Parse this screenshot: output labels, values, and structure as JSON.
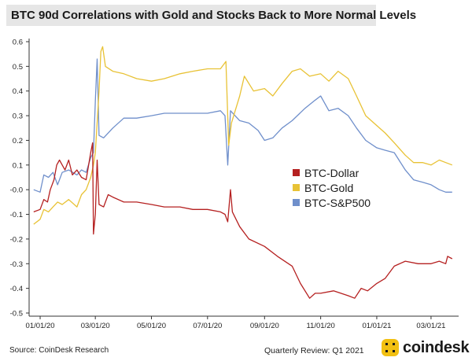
{
  "header": {
    "title": "BTC 90d Correlations with Gold and Stocks Back to More Normal Levels"
  },
  "footer": {
    "source": "Source: CoinDesk Research",
    "review": "Quarterly Review: Q1 2021",
    "brand": "coindesk"
  },
  "colors": {
    "dollar": "#b52020",
    "gold": "#e8c235",
    "sp500": "#6f8fcb",
    "brand": "#f2c012"
  },
  "chart_data": {
    "type": "line",
    "title": "BTC 90d Correlations with Gold and Stocks Back to More Normal Levels",
    "xlabel": "",
    "ylabel": "",
    "xlim": [
      "2019-12-20",
      "2021-03-31"
    ],
    "ylim": [
      -0.5,
      0.6
    ],
    "x_ticks": [
      "2020-01-01",
      "2020-03-01",
      "2020-05-01",
      "2020-07-01",
      "2020-09-01",
      "2020-11-01",
      "2021-01-01",
      "2021-03-01"
    ],
    "x_tick_labels": [
      "01/01/20",
      "03/01/20",
      "05/01/20",
      "07/01/20",
      "09/01/20",
      "11/01/20",
      "01/01/21",
      "03/01/21"
    ],
    "y_ticks": [
      0.6,
      0.5,
      0.4,
      0.3,
      0.2,
      0.1,
      0.0,
      -0.1,
      -0.2,
      -0.3,
      -0.4,
      -0.5
    ],
    "y_tick_labels": [
      "0.6",
      "0.5",
      "0.4",
      "0.3",
      "0.2",
      "0.1",
      "-0.0",
      "-0.1",
      "-0.2",
      "-0.3",
      "-0.4",
      "-0.5"
    ],
    "grid": "none",
    "legend_position": "right",
    "series": [
      {
        "name": "BTC-Dollar",
        "color": "#b52020",
        "points": [
          [
            "2019-12-25",
            -0.09
          ],
          [
            "2020-01-01",
            -0.08
          ],
          [
            "2020-01-05",
            -0.04
          ],
          [
            "2020-01-09",
            -0.05
          ],
          [
            "2020-01-12",
            0.0
          ],
          [
            "2020-01-16",
            0.04
          ],
          [
            "2020-01-19",
            0.1
          ],
          [
            "2020-01-22",
            0.12
          ],
          [
            "2020-01-25",
            0.1
          ],
          [
            "2020-01-28",
            0.08
          ],
          [
            "2020-02-01",
            0.12
          ],
          [
            "2020-02-05",
            0.06
          ],
          [
            "2020-02-10",
            0.08
          ],
          [
            "2020-02-15",
            0.05
          ],
          [
            "2020-02-20",
            0.04
          ],
          [
            "2020-02-25",
            0.15
          ],
          [
            "2020-02-27",
            0.19
          ],
          [
            "2020-02-28",
            -0.18
          ],
          [
            "2020-03-01",
            -0.1
          ],
          [
            "2020-03-03",
            0.12
          ],
          [
            "2020-03-05",
            -0.06
          ],
          [
            "2020-03-10",
            -0.07
          ],
          [
            "2020-03-15",
            -0.02
          ],
          [
            "2020-03-20",
            -0.03
          ],
          [
            "2020-04-01",
            -0.05
          ],
          [
            "2020-04-15",
            -0.05
          ],
          [
            "2020-05-01",
            -0.06
          ],
          [
            "2020-05-15",
            -0.07
          ],
          [
            "2020-06-01",
            -0.07
          ],
          [
            "2020-06-15",
            -0.08
          ],
          [
            "2020-07-01",
            -0.08
          ],
          [
            "2020-07-15",
            -0.09
          ],
          [
            "2020-07-20",
            -0.1
          ],
          [
            "2020-07-23",
            -0.13
          ],
          [
            "2020-07-26",
            0.0
          ],
          [
            "2020-07-28",
            -0.09
          ],
          [
            "2020-08-05",
            -0.15
          ],
          [
            "2020-08-15",
            -0.2
          ],
          [
            "2020-09-01",
            -0.23
          ],
          [
            "2020-09-15",
            -0.27
          ],
          [
            "2020-10-01",
            -0.31
          ],
          [
            "2020-10-10",
            -0.38
          ],
          [
            "2020-10-20",
            -0.44
          ],
          [
            "2020-10-26",
            -0.42
          ],
          [
            "2020-11-01",
            -0.42
          ],
          [
            "2020-11-15",
            -0.41
          ],
          [
            "2020-12-01",
            -0.43
          ],
          [
            "2020-12-08",
            -0.44
          ],
          [
            "2020-12-15",
            -0.4
          ],
          [
            "2020-12-22",
            -0.41
          ],
          [
            "2021-01-01",
            -0.38
          ],
          [
            "2021-01-10",
            -0.36
          ],
          [
            "2021-01-20",
            -0.31
          ],
          [
            "2021-02-01",
            -0.29
          ],
          [
            "2021-02-15",
            -0.3
          ],
          [
            "2021-03-01",
            -0.3
          ],
          [
            "2021-03-10",
            -0.29
          ],
          [
            "2021-03-17",
            -0.3
          ],
          [
            "2021-03-19",
            -0.27
          ],
          [
            "2021-03-24",
            -0.28
          ]
        ]
      },
      {
        "name": "BTC-Gold",
        "color": "#e8c235",
        "points": [
          [
            "2019-12-25",
            -0.14
          ],
          [
            "2020-01-01",
            -0.12
          ],
          [
            "2020-01-05",
            -0.08
          ],
          [
            "2020-01-10",
            -0.09
          ],
          [
            "2020-01-15",
            -0.07
          ],
          [
            "2020-01-20",
            -0.05
          ],
          [
            "2020-01-25",
            -0.06
          ],
          [
            "2020-02-01",
            -0.04
          ],
          [
            "2020-02-10",
            -0.07
          ],
          [
            "2020-02-15",
            -0.02
          ],
          [
            "2020-02-20",
            0.0
          ],
          [
            "2020-02-25",
            0.05
          ],
          [
            "2020-02-28",
            0.1
          ],
          [
            "2020-03-01",
            0.15
          ],
          [
            "2020-03-05",
            0.4
          ],
          [
            "2020-03-07",
            0.56
          ],
          [
            "2020-03-09",
            0.58
          ],
          [
            "2020-03-12",
            0.5
          ],
          [
            "2020-03-20",
            0.48
          ],
          [
            "2020-04-01",
            0.47
          ],
          [
            "2020-04-15",
            0.45
          ],
          [
            "2020-05-01",
            0.44
          ],
          [
            "2020-05-15",
            0.45
          ],
          [
            "2020-06-01",
            0.47
          ],
          [
            "2020-06-15",
            0.48
          ],
          [
            "2020-07-01",
            0.49
          ],
          [
            "2020-07-15",
            0.49
          ],
          [
            "2020-07-21",
            0.52
          ],
          [
            "2020-07-24",
            0.18
          ],
          [
            "2020-07-27",
            0.27
          ],
          [
            "2020-08-05",
            0.38
          ],
          [
            "2020-08-10",
            0.46
          ],
          [
            "2020-08-20",
            0.4
          ],
          [
            "2020-09-01",
            0.41
          ],
          [
            "2020-09-10",
            0.38
          ],
          [
            "2020-09-20",
            0.43
          ],
          [
            "2020-10-01",
            0.48
          ],
          [
            "2020-10-10",
            0.49
          ],
          [
            "2020-10-20",
            0.46
          ],
          [
            "2020-11-01",
            0.47
          ],
          [
            "2020-11-10",
            0.44
          ],
          [
            "2020-11-20",
            0.48
          ],
          [
            "2020-12-01",
            0.45
          ],
          [
            "2020-12-10",
            0.38
          ],
          [
            "2020-12-20",
            0.3
          ],
          [
            "2021-01-01",
            0.26
          ],
          [
            "2021-01-10",
            0.23
          ],
          [
            "2021-01-20",
            0.19
          ],
          [
            "2021-02-01",
            0.14
          ],
          [
            "2021-02-10",
            0.11
          ],
          [
            "2021-02-20",
            0.11
          ],
          [
            "2021-03-01",
            0.1
          ],
          [
            "2021-03-10",
            0.12
          ],
          [
            "2021-03-17",
            0.11
          ],
          [
            "2021-03-24",
            0.1
          ]
        ]
      },
      {
        "name": "BTC-S&P500",
        "color": "#6f8fcb",
        "points": [
          [
            "2019-12-25",
            0.0
          ],
          [
            "2020-01-01",
            -0.01
          ],
          [
            "2020-01-05",
            0.06
          ],
          [
            "2020-01-10",
            0.05
          ],
          [
            "2020-01-15",
            0.07
          ],
          [
            "2020-01-20",
            0.02
          ],
          [
            "2020-01-25",
            0.07
          ],
          [
            "2020-02-01",
            0.08
          ],
          [
            "2020-02-10",
            0.06
          ],
          [
            "2020-02-15",
            0.08
          ],
          [
            "2020-02-20",
            0.07
          ],
          [
            "2020-02-25",
            0.13
          ],
          [
            "2020-02-28",
            0.15
          ],
          [
            "2020-03-01",
            0.36
          ],
          [
            "2020-03-03",
            0.53
          ],
          [
            "2020-03-05",
            0.22
          ],
          [
            "2020-03-10",
            0.21
          ],
          [
            "2020-03-20",
            0.25
          ],
          [
            "2020-04-01",
            0.29
          ],
          [
            "2020-04-15",
            0.29
          ],
          [
            "2020-05-01",
            0.3
          ],
          [
            "2020-05-15",
            0.31
          ],
          [
            "2020-06-01",
            0.31
          ],
          [
            "2020-06-15",
            0.31
          ],
          [
            "2020-07-01",
            0.31
          ],
          [
            "2020-07-15",
            0.32
          ],
          [
            "2020-07-20",
            0.3
          ],
          [
            "2020-07-23",
            0.1
          ],
          [
            "2020-07-26",
            0.32
          ],
          [
            "2020-08-05",
            0.28
          ],
          [
            "2020-08-15",
            0.27
          ],
          [
            "2020-08-25",
            0.24
          ],
          [
            "2020-09-01",
            0.2
          ],
          [
            "2020-09-10",
            0.21
          ],
          [
            "2020-09-20",
            0.25
          ],
          [
            "2020-10-01",
            0.28
          ],
          [
            "2020-10-15",
            0.33
          ],
          [
            "2020-10-25",
            0.36
          ],
          [
            "2020-11-01",
            0.38
          ],
          [
            "2020-11-10",
            0.32
          ],
          [
            "2020-11-20",
            0.33
          ],
          [
            "2020-12-01",
            0.3
          ],
          [
            "2020-12-10",
            0.25
          ],
          [
            "2020-12-20",
            0.2
          ],
          [
            "2021-01-01",
            0.17
          ],
          [
            "2021-01-10",
            0.16
          ],
          [
            "2021-01-20",
            0.15
          ],
          [
            "2021-02-01",
            0.08
          ],
          [
            "2021-02-10",
            0.04
          ],
          [
            "2021-02-20",
            0.03
          ],
          [
            "2021-03-01",
            0.02
          ],
          [
            "2021-03-10",
            0.0
          ],
          [
            "2021-03-17",
            -0.01
          ],
          [
            "2021-03-24",
            -0.01
          ]
        ]
      }
    ]
  }
}
